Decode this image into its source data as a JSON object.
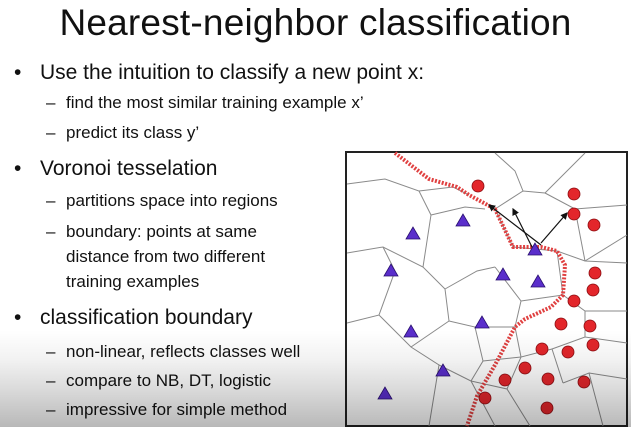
{
  "slide": {
    "title": "Nearest-neighbor classification",
    "bullets": [
      {
        "text": "Use the intuition to classify a new point x:",
        "sub": [
          "find the most similar training example x’",
          "predict its class y’"
        ]
      },
      {
        "text": "Voronoi tesselation",
        "sub": [
          "partitions space into regions",
          "boundary: points at same",
          "distance from two different",
          "training examples"
        ]
      },
      {
        "text": "classification boundary",
        "sub": [
          "non-linear, reflects classes well",
          "compare to NB, DT, logistic",
          "impressive for simple method"
        ]
      }
    ],
    "bullet_glyph": "•",
    "dash_glyph": "–"
  },
  "diagram": {
    "colors": {
      "circle": "#e3262b",
      "triangle": "#5a2ecb",
      "boundary": "#e04040",
      "cell_edge": "#8a8a8a",
      "border": "#222222"
    }
  }
}
